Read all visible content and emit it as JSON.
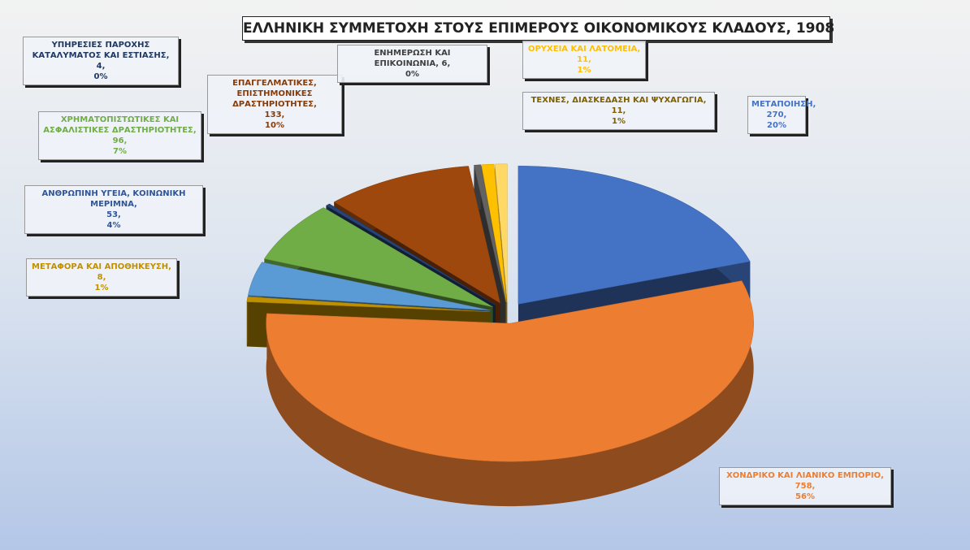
{
  "chart_data": {
    "type": "pie",
    "title": "ΕΛΛΗΝΙΚΗ ΣΥΜΜΕΤΟΧΗ ΣΤΟΥΣ ΕΠΙΜΕΡΟΥΣ ΟΙΚΟΝΟΜΙΚΟΥΣ ΚΛΑΔΟΥΣ, 1908",
    "categories": [
      "ΜΕΤΑΠΟΙΗΣΗ,",
      "ΧΟΝΔΡΙΚΟ ΚΑΙ ΛΙΑΝΙΚΟ ΕΜΠΟΡΙΟ,",
      "ΜΕΤΑΦΟΡΑ ΚΑΙ ΑΠΟΘΗΚΕΥΣΗ,",
      "ΑΝΘΡΩΠΙΝΗ ΥΓΕΙΑ, ΚΟΙΝΩΝΙΚΗ ΜΕΡΙΜΝΑ,",
      "ΧΡΗΜΑΤΟΠΙΣΤΩΤΙΚΕΣ ΚΑΙ ΑΣΦΑΛΙΣΤΙΚΕΣ ΔΡΑΣΤΗΡΙΟΤΗΤΕΣ,",
      "ΥΠΗΡΕΣΙΕΣ ΠΑΡΟΧΗΣ ΚΑΤΑΛΥΜΑΤΟΣ ΚΑΙ ΕΣΤΙΑΣΗΣ,",
      "ΕΠΑΓΓΕΛΜΑΤΙΚΕΣ, ΕΠΙΣΤΗΜΟΝΙΚΕΣ ΔΡΑΣΤΗΡΙΟΤΗΤΕΣ,",
      "ΕΝΗΜΕΡΩΣΗ ΚΑΙ ΕΠΙΚΟΙΝΩΝΙΑ,",
      "ΟΡΥΧΕΙΑ ΚΑΙ ΛΑΤΟΜΕΙΑ,",
      "ΤΕΧΝΕΣ, ΔΙΑΣΚΕΔΑΣΗ ΚΑΙ ΨΥΧΑΓΩΓΙΑ,"
    ],
    "values": [
      270,
      758,
      8,
      53,
      96,
      4,
      133,
      6,
      11,
      11
    ],
    "value_labels": [
      "270,",
      "758,",
      "8,",
      "53,",
      "96,",
      "4,",
      "133,",
      "6,",
      "11,",
      "11,"
    ],
    "percents": [
      20,
      56,
      1,
      4,
      7,
      0,
      10,
      0,
      1,
      1
    ],
    "percent_labels": [
      "20%",
      "56%",
      "1%",
      "4%",
      "7%",
      "0%",
      "10%",
      "0%",
      "1%",
      "1%"
    ],
    "colors": [
      "#4472c4",
      "#ed7d31",
      "#bf9000",
      "#5b9bd5",
      "#70ad47",
      "#264478",
      "#9e480e",
      "#636363",
      "#ffc000",
      "#ffd966"
    ]
  }
}
